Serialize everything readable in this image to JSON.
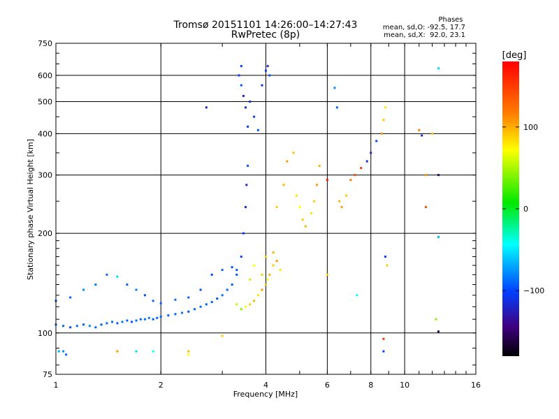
{
  "chart_data": {
    "type": "scatter",
    "title": "Tromsø 20151101 14:26:00–14:27:43",
    "subtitle": "RwPretec (8p)",
    "xlabel": "Frequency [MHz]",
    "ylabel": "Stationary phase Virtual Height [km]",
    "xscale": "log",
    "yscale": "log",
    "xlim": [
      1,
      16
    ],
    "ylim": [
      75,
      750
    ],
    "xticks": [
      1,
      2,
      4,
      6,
      8,
      10,
      16
    ],
    "xtick_labels": [
      "1",
      "2",
      "4",
      "6",
      "8",
      "10",
      "16"
    ],
    "yticks": [
      75,
      100,
      200,
      300,
      400,
      500,
      600,
      750
    ],
    "ytick_labels": [
      "75",
      "100",
      "200",
      "300",
      "400",
      "500",
      "600",
      "750"
    ],
    "grid": true,
    "phase_info": {
      "title": "Phases",
      "line1": "mean, sd,O: -92.5, 17.7",
      "line2": "mean, sd,X:  92.0, 23.1"
    },
    "colorbar": {
      "label": "[deg]",
      "range": [
        -180,
        180
      ],
      "ticks": [
        100,
        0,
        -100
      ],
      "tick_labels": [
        "100",
        "0",
        "−100"
      ]
    },
    "series": [
      {
        "points": [
          [
            1.0,
            106,
            -85
          ],
          [
            1.05,
            105,
            -90
          ],
          [
            1.1,
            104,
            -95
          ],
          [
            1.15,
            105,
            -88
          ],
          [
            1.2,
            106,
            -92
          ],
          [
            1.25,
            105,
            -80
          ],
          [
            1.3,
            104,
            -90
          ],
          [
            1.35,
            106,
            -95
          ],
          [
            1.4,
            107,
            -88
          ],
          [
            1.45,
            108,
            -90
          ],
          [
            1.5,
            107,
            -92
          ],
          [
            1.55,
            108,
            -85
          ],
          [
            1.6,
            109,
            -90
          ],
          [
            1.65,
            108,
            -95
          ],
          [
            1.7,
            109,
            -88
          ],
          [
            1.75,
            110,
            -92
          ],
          [
            1.8,
            110,
            -90
          ],
          [
            1.85,
            111,
            -85
          ],
          [
            1.9,
            110,
            -95
          ],
          [
            1.95,
            111,
            -90
          ],
          [
            2.0,
            112,
            -88
          ],
          [
            2.1,
            113,
            -92
          ],
          [
            2.2,
            114,
            -90
          ],
          [
            2.3,
            115,
            -85
          ],
          [
            2.4,
            116,
            -95
          ],
          [
            2.5,
            118,
            -90
          ],
          [
            2.6,
            120,
            -88
          ],
          [
            2.7,
            122,
            -92
          ],
          [
            2.8,
            124,
            -90
          ],
          [
            2.9,
            127,
            -95
          ],
          [
            3.0,
            130,
            -85
          ],
          [
            3.1,
            135,
            -90
          ],
          [
            3.2,
            140,
            -92
          ],
          [
            3.3,
            150,
            -95
          ],
          [
            3.4,
            170,
            -100
          ],
          [
            3.45,
            200,
            -105
          ],
          [
            3.5,
            240,
            -110
          ],
          [
            3.52,
            280,
            -120
          ],
          [
            3.55,
            320,
            -95
          ],
          [
            3.55,
            420,
            -100
          ],
          [
            3.5,
            480,
            -110
          ],
          [
            3.45,
            520,
            -120
          ],
          [
            3.4,
            560,
            -95
          ],
          [
            3.35,
            600,
            -100
          ],
          [
            3.4,
            640,
            -105
          ],
          [
            3.6,
            500,
            -110
          ],
          [
            3.7,
            450,
            -100
          ],
          [
            3.8,
            410,
            -95
          ],
          [
            3.9,
            560,
            -105
          ],
          [
            4.0,
            620,
            -100
          ],
          [
            4.05,
            640,
            -110
          ],
          [
            4.1,
            600,
            -95
          ]
        ]
      },
      {
        "points": [
          [
            1.0,
            125,
            -95
          ],
          [
            1.1,
            128,
            -90
          ],
          [
            1.2,
            135,
            -80
          ],
          [
            1.3,
            140,
            -85
          ],
          [
            1.4,
            150,
            -90
          ],
          [
            1.5,
            148,
            -60
          ],
          [
            1.6,
            140,
            -90
          ],
          [
            1.7,
            135,
            -85
          ],
          [
            1.8,
            130,
            -95
          ],
          [
            1.9,
            125,
            -90
          ],
          [
            2.0,
            123,
            -92
          ],
          [
            2.2,
            126,
            -88
          ],
          [
            2.4,
            128,
            -90
          ],
          [
            2.6,
            135,
            -95
          ],
          [
            2.8,
            150,
            -100
          ],
          [
            3.0,
            155,
            -90
          ],
          [
            3.2,
            158,
            -95
          ],
          [
            3.3,
            155,
            -92
          ]
        ]
      },
      {
        "points": [
          [
            3.3,
            122,
            60
          ],
          [
            3.4,
            118,
            40
          ],
          [
            3.5,
            120,
            80
          ],
          [
            3.6,
            122,
            100
          ],
          [
            3.7,
            125,
            110
          ],
          [
            3.8,
            130,
            90
          ],
          [
            3.9,
            135,
            120
          ],
          [
            4.0,
            140,
            100
          ],
          [
            4.05,
            145,
            80
          ],
          [
            4.1,
            150,
            110
          ],
          [
            4.2,
            160,
            100
          ],
          [
            4.3,
            165,
            120
          ],
          [
            4.4,
            155,
            90
          ],
          [
            3.9,
            150,
            100
          ],
          [
            3.7,
            160,
            80
          ],
          [
            4.0,
            170,
            95
          ],
          [
            4.2,
            175,
            110
          ],
          [
            3.6,
            145,
            60
          ]
        ]
      },
      {
        "points": [
          [
            4.3,
            240,
            100
          ],
          [
            4.5,
            280,
            110
          ],
          [
            4.6,
            330,
            120
          ],
          [
            4.8,
            350,
            105
          ],
          [
            4.9,
            260,
            90
          ],
          [
            5.0,
            240,
            80
          ],
          [
            5.1,
            220,
            100
          ],
          [
            5.2,
            210,
            110
          ],
          [
            5.4,
            230,
            90
          ],
          [
            5.5,
            250,
            100
          ],
          [
            5.6,
            280,
            120
          ],
          [
            5.7,
            320,
            110
          ]
        ]
      },
      {
        "points": [
          [
            6.3,
            550,
            -80
          ],
          [
            6.4,
            480,
            -90
          ],
          [
            6.5,
            250,
            110
          ],
          [
            6.6,
            240,
            120
          ],
          [
            6.8,
            260,
            100
          ],
          [
            7.0,
            290,
            130
          ],
          [
            7.2,
            300,
            150
          ],
          [
            7.5,
            315,
            160
          ],
          [
            7.8,
            330,
            -110
          ],
          [
            8.0,
            350,
            -120
          ],
          [
            8.3,
            380,
            -100
          ],
          [
            8.6,
            400,
            120
          ],
          [
            8.7,
            440,
            100
          ],
          [
            8.8,
            480,
            90
          ],
          [
            8.8,
            170,
            -100
          ],
          [
            8.9,
            160,
            100
          ],
          [
            8.7,
            96,
            160
          ],
          [
            8.7,
            88,
            -100
          ],
          [
            11.0,
            410,
            130
          ],
          [
            11.2,
            395,
            -110
          ],
          [
            11.5,
            300,
            120
          ],
          [
            11.5,
            240,
            150
          ],
          [
            12.0,
            400,
            100
          ],
          [
            12.5,
            630,
            -60
          ],
          [
            12.5,
            300,
            -150
          ],
          [
            12.5,
            195,
            -70
          ],
          [
            12.3,
            110,
            40
          ],
          [
            12.5,
            101,
            -150
          ],
          [
            7.3,
            130,
            -50
          ],
          [
            6.0,
            290,
            170
          ],
          [
            6.0,
            150,
            100
          ]
        ]
      },
      {
        "points": [
          [
            1.05,
            88,
            -80
          ],
          [
            1.07,
            86,
            -90
          ],
          [
            1.02,
            88,
            -70
          ],
          [
            1.5,
            88,
            120
          ],
          [
            1.7,
            88,
            -60
          ],
          [
            1.9,
            88,
            -50
          ],
          [
            2.4,
            88,
            110
          ],
          [
            2.4,
            86,
            80
          ],
          [
            3.0,
            98,
            100
          ],
          [
            2.7,
            480,
            -120
          ]
        ]
      }
    ]
  }
}
